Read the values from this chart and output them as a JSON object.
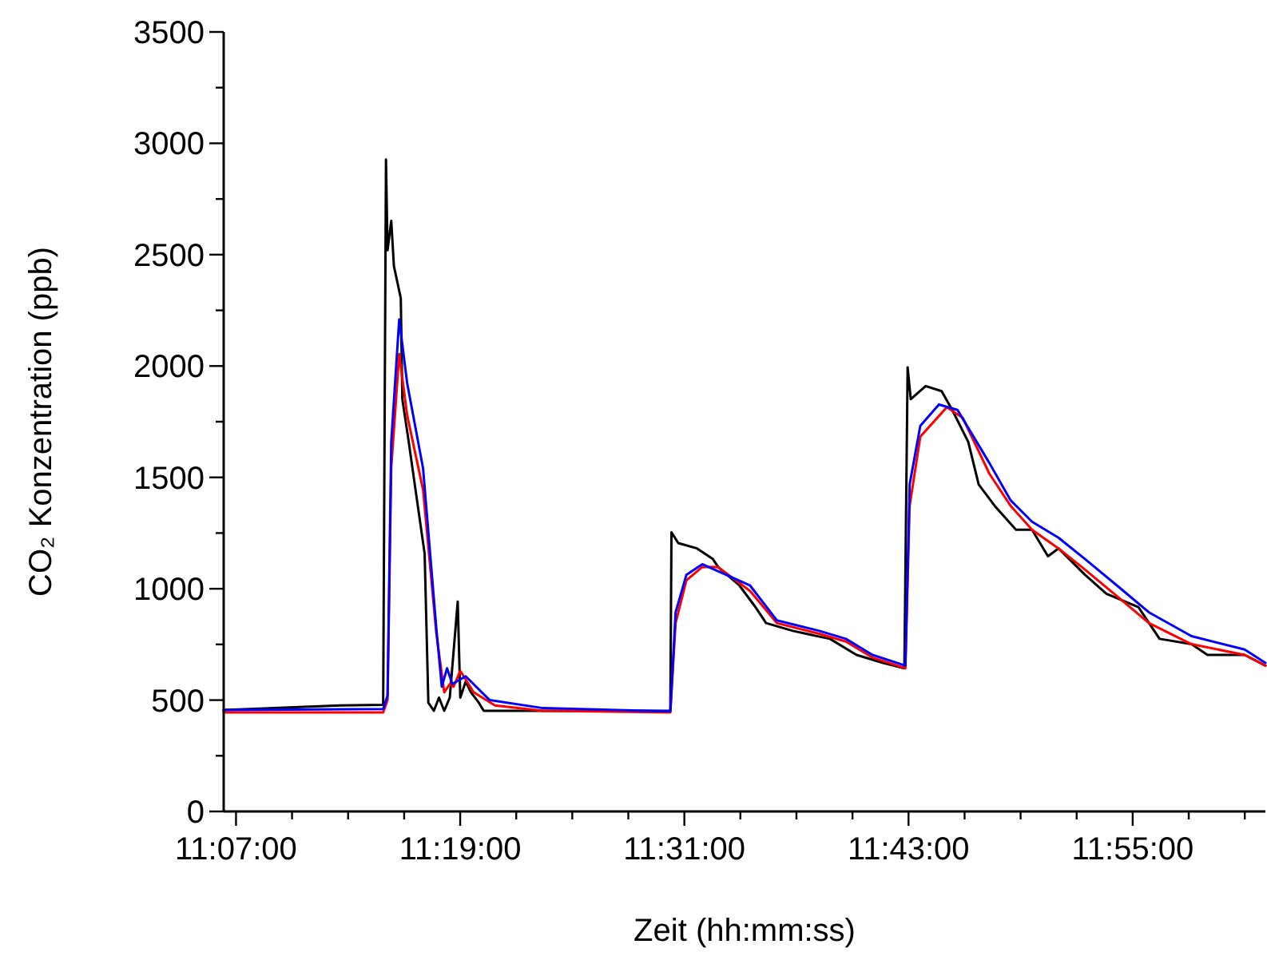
{
  "chart_data": {
    "type": "line",
    "xlabel": "Zeit (hh:mm:ss)",
    "ylabel": "CO₂ Konzentration (ppb)",
    "xlim": [
      11.1057,
      12.0351
    ],
    "ylim": [
      0,
      3500
    ],
    "xticks": [
      {
        "value": 11.1167,
        "label": "11:07:00"
      },
      {
        "value": 11.1667,
        "label": null
      },
      {
        "value": 11.2167,
        "label": null
      },
      {
        "value": 11.2667,
        "label": null
      },
      {
        "value": 11.3167,
        "label": "11:19:00"
      },
      {
        "value": 11.3667,
        "label": null
      },
      {
        "value": 11.4167,
        "label": null
      },
      {
        "value": 11.4667,
        "label": null
      },
      {
        "value": 11.5167,
        "label": "11:31:00"
      },
      {
        "value": 11.5667,
        "label": null
      },
      {
        "value": 11.6167,
        "label": null
      },
      {
        "value": 11.6667,
        "label": null
      },
      {
        "value": 11.7167,
        "label": "11:43:00"
      },
      {
        "value": 11.7667,
        "label": null
      },
      {
        "value": 11.8167,
        "label": null
      },
      {
        "value": 11.8667,
        "label": null
      },
      {
        "value": 11.9167,
        "label": "11:55:00"
      },
      {
        "value": 11.9667,
        "label": null
      },
      {
        "value": 12.0167,
        "label": null
      }
    ],
    "yticks": [
      0,
      {
        "value": 250,
        "label": null
      },
      500,
      {
        "value": 750,
        "label": null
      },
      1000,
      {
        "value": 1250,
        "label": null
      },
      1500,
      {
        "value": 1750,
        "label": null
      },
      2000,
      {
        "value": 2250,
        "label": null
      },
      2500,
      {
        "value": 2750,
        "label": null
      },
      3000,
      {
        "value": 3250,
        "label": null
      },
      3500
    ],
    "grid": false,
    "marker": "none",
    "line_style": "solid",
    "series": [
      {
        "color": "#000000",
        "x": [
          11.1057,
          11.2096,
          11.248,
          11.2505,
          11.2519,
          11.2552,
          11.2576,
          11.2637,
          11.2651,
          11.2708,
          11.2789,
          11.285,
          11.2883,
          11.2932,
          11.2978,
          11.3025,
          11.3074,
          11.3145,
          11.3168,
          11.3216,
          11.3263,
          11.3334,
          11.3377,
          11.5042,
          11.5052,
          11.5113,
          11.528,
          11.5422,
          11.5469,
          11.5659,
          11.5801,
          11.5896,
          11.6134,
          11.6466,
          11.6703,
          11.694,
          11.713,
          11.7159,
          11.7187,
          11.732,
          11.7462,
          11.7557,
          11.77,
          11.7793,
          11.7936,
          11.8126,
          11.8269,
          11.8411,
          11.8505,
          11.8743,
          11.8932,
          11.9217,
          11.9407,
          11.9692,
          11.9834,
          12.0166,
          12.0351
        ],
        "values": [
          455,
          476,
          479,
          2927,
          2520,
          2652,
          2448,
          2305,
          1851,
          1659,
          1372,
          1157,
          488,
          452,
          511,
          452,
          511,
          942,
          511,
          583,
          535,
          488,
          452,
          452,
          1253,
          1205,
          1181,
          1133,
          1097,
          1014,
          918,
          846,
          811,
          775,
          703,
          667,
          643,
          1994,
          1851,
          1910,
          1887,
          1803,
          1659,
          1468,
          1372,
          1265,
          1265,
          1146,
          1181,
          1062,
          978,
          918,
          775,
          751,
          703,
          703,
          655
        ]
      },
      {
        "color": "#ff0000",
        "x": [
          11.1057,
          11.248,
          11.2519,
          11.2552,
          11.2623,
          11.2694,
          11.2836,
          11.2954,
          11.3025,
          11.3074,
          11.3107,
          11.3168,
          11.3287,
          11.3477,
          11.3904,
          11.5042,
          11.5089,
          11.5185,
          11.5327,
          11.5469,
          11.5754,
          11.5992,
          11.637,
          11.6608,
          11.6845,
          11.7139,
          11.7177,
          11.7272,
          11.7509,
          11.7651,
          11.7889,
          11.8078,
          11.8269,
          11.8505,
          11.8743,
          11.9028,
          11.9312,
          11.9692,
          12.0166,
          12.0351
        ],
        "values": [
          445,
          445,
          500,
          1542,
          2054,
          1779,
          1444,
          800,
          535,
          572,
          560,
          631,
          535,
          476,
          452,
          445,
          846,
          1038,
          1098,
          1097,
          990,
          846,
          798,
          763,
          691,
          643,
          1372,
          1683,
          1815,
          1767,
          1516,
          1372,
          1265,
          1181,
          1085,
          966,
          846,
          751,
          703,
          655
        ]
      },
      {
        "color": "#0000ff",
        "x": [
          11.1057,
          11.248,
          11.2519,
          11.2552,
          11.2623,
          11.2694,
          11.2836,
          11.2954,
          11.3003,
          11.305,
          11.3097,
          11.3216,
          11.343,
          11.3904,
          11.4971,
          11.5042,
          11.5089,
          11.5185,
          11.5327,
          11.5754,
          11.5992,
          11.637,
          11.6608,
          11.6845,
          11.7139,
          11.7177,
          11.7272,
          11.7438,
          11.7604,
          11.7889,
          11.8078,
          11.8269,
          11.8505,
          11.8743,
          11.9028,
          11.9312,
          11.9692,
          12.0166,
          12.0351
        ],
        "values": [
          455,
          460,
          520,
          1659,
          2209,
          1923,
          1540,
          823,
          560,
          643,
          572,
          607,
          500,
          464,
          450,
          450,
          894,
          1062,
          1110,
          1014,
          858,
          811,
          775,
          703,
          655,
          1468,
          1731,
          1827,
          1803,
          1564,
          1397,
          1301,
          1229,
          1133,
          1014,
          894,
          787,
          727,
          667
        ]
      }
    ]
  }
}
